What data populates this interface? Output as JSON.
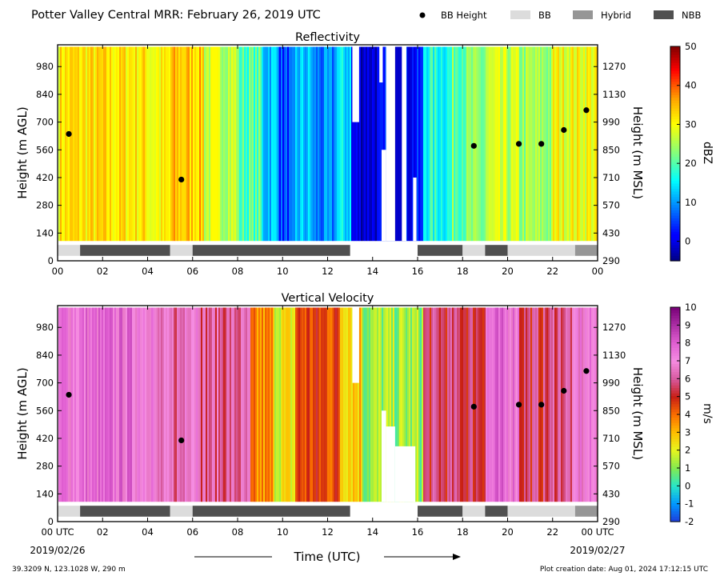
{
  "header": {
    "title": "Potter Valley Central MRR:  February 26, 2019 UTC",
    "legend": [
      {
        "label": "BB Height",
        "kind": "dot",
        "color": "#000000"
      },
      {
        "label": "BB",
        "kind": "box",
        "color": "#dcdcdc"
      },
      {
        "label": "Hybrid",
        "kind": "box",
        "color": "#969696"
      },
      {
        "label": "NBB",
        "kind": "box",
        "color": "#505050"
      }
    ]
  },
  "footer": {
    "location": "39.3209 N, 123.1028 W, 290 m",
    "created": "Plot creation date: Aug 01, 2024 17:12:15 UTC",
    "start_date": "2019/02/26",
    "end_date": "2019/02/27",
    "xlabel": "Time (UTC)"
  },
  "chart_data": [
    {
      "type": "heatmap",
      "title": "Reflectivity",
      "ylabel": "Height (m AGL)",
      "ylabel_right": "Height (m MSL)",
      "xlim": [
        0,
        24
      ],
      "ylim": [
        0,
        1090
      ],
      "yticks": [
        "0",
        "140",
        "280",
        "420",
        "560",
        "700",
        "840",
        "980"
      ],
      "yticks_right": [
        "290",
        "430",
        "570",
        "710",
        "850",
        "990",
        "1130",
        "1270"
      ],
      "xticks": [
        "00",
        "02",
        "04",
        "06",
        "08",
        "10",
        "12",
        "14",
        "16",
        "18",
        "20",
        "22",
        "00"
      ],
      "colorbar": {
        "label": "dBZ",
        "min": -5,
        "max": 50,
        "ticks": [
          "0",
          "10",
          "20",
          "30",
          "40",
          "50"
        ],
        "tick_values": [
          0,
          10,
          20,
          30,
          40,
          50
        ],
        "colormap": "jet"
      },
      "time_segments": [
        {
          "start": 0,
          "end": 4.0,
          "value": 32
        },
        {
          "start": 4.0,
          "end": 5.0,
          "value": 30
        },
        {
          "start": 5.0,
          "end": 6.5,
          "value": 34
        },
        {
          "start": 6.5,
          "end": 8.0,
          "value": 27
        },
        {
          "start": 8.0,
          "end": 9.0,
          "value": 20
        },
        {
          "start": 9.0,
          "end": 9.8,
          "value": 13
        },
        {
          "start": 9.8,
          "end": 10.5,
          "value": 5
        },
        {
          "start": 10.5,
          "end": 11.3,
          "value": 12
        },
        {
          "start": 11.3,
          "end": 12.3,
          "value": 8
        },
        {
          "start": 12.3,
          "end": 13.0,
          "value": 14
        },
        {
          "start": 13.0,
          "end": 14.5,
          "value": 0
        },
        {
          "start": 14.5,
          "end": 16.2,
          "value": 2
        },
        {
          "start": 16.2,
          "end": 17.5,
          "value": 17
        },
        {
          "start": 17.5,
          "end": 19.0,
          "value": 22
        },
        {
          "start": 19.0,
          "end": 20.5,
          "value": 26
        },
        {
          "start": 20.5,
          "end": 22.0,
          "value": 24
        },
        {
          "start": 22.0,
          "end": 24.0,
          "value": 30
        }
      ],
      "gaps": [
        {
          "start": 13.1,
          "end": 13.4,
          "ymin": 700,
          "ymax": 1090
        },
        {
          "start": 14.3,
          "end": 14.45,
          "ymin": 900,
          "ymax": 1090
        },
        {
          "start": 14.4,
          "end": 14.6,
          "ymin": 100,
          "ymax": 560
        },
        {
          "start": 14.6,
          "end": 15.0,
          "ymin": 100,
          "ymax": 1090
        },
        {
          "start": 15.3,
          "end": 15.5,
          "ymin": 100,
          "ymax": 1090
        },
        {
          "start": 15.8,
          "end": 15.95,
          "ymin": 100,
          "ymax": 420
        }
      ],
      "bb_points": [
        {
          "x": 0.5,
          "y": 640
        },
        {
          "x": 5.5,
          "y": 410
        },
        {
          "x": 18.5,
          "y": 580
        },
        {
          "x": 20.5,
          "y": 590
        },
        {
          "x": 21.5,
          "y": 590
        },
        {
          "x": 22.5,
          "y": 660
        },
        {
          "x": 23.5,
          "y": 760
        }
      ],
      "bb_type_strip": [
        {
          "start": 0,
          "end": 1.0,
          "type": "BB"
        },
        {
          "start": 1.0,
          "end": 5.0,
          "type": "NBB"
        },
        {
          "start": 5.0,
          "end": 6.0,
          "type": "BB"
        },
        {
          "start": 6.0,
          "end": 13.0,
          "type": "NBB"
        },
        {
          "start": 16.0,
          "end": 18.0,
          "type": "NBB"
        },
        {
          "start": 18.0,
          "end": 19.0,
          "type": "BB"
        },
        {
          "start": 19.0,
          "end": 20.0,
          "type": "NBB"
        },
        {
          "start": 20.0,
          "end": 23.0,
          "type": "BB"
        },
        {
          "start": 23.0,
          "end": 24.0,
          "type": "Hybrid"
        }
      ]
    },
    {
      "type": "heatmap",
      "title": "Vertical Velocity",
      "ylabel": "Height (m AGL)",
      "ylabel_right": "Height (m MSL)",
      "xlim": [
        0,
        24
      ],
      "ylim": [
        0,
        1090
      ],
      "yticks": [
        "0",
        "140",
        "280",
        "420",
        "560",
        "700",
        "840",
        "980"
      ],
      "yticks_right": [
        "290",
        "430",
        "570",
        "710",
        "850",
        "990",
        "1130",
        "1270"
      ],
      "xticks": [
        "00 UTC",
        "02",
        "04",
        "06",
        "08",
        "10",
        "12",
        "14",
        "16",
        "18",
        "20",
        "22",
        "00 UTC"
      ],
      "colorbar": {
        "label": "m/s",
        "min": -2,
        "max": 10,
        "ticks": [
          "-2",
          "-1",
          "0",
          "1",
          "2",
          "3",
          "4",
          "5",
          "6",
          "7",
          "8",
          "9",
          "10"
        ],
        "tick_values": [
          -2,
          -1,
          0,
          1,
          2,
          3,
          4,
          5,
          6,
          7,
          8,
          9,
          10
        ],
        "colormap": "velocity"
      },
      "time_segments": [
        {
          "start": 0,
          "end": 4.3,
          "value": 7.5
        },
        {
          "start": 4.3,
          "end": 5.6,
          "value": 6.2
        },
        {
          "start": 5.6,
          "end": 6.3,
          "value": 7.3
        },
        {
          "start": 6.3,
          "end": 8.5,
          "value": 6.0
        },
        {
          "start": 8.5,
          "end": 9.5,
          "value": 3.5
        },
        {
          "start": 9.5,
          "end": 10.5,
          "value": 2.2
        },
        {
          "start": 10.5,
          "end": 12.5,
          "value": 4.5
        },
        {
          "start": 12.5,
          "end": 13.5,
          "value": 3.0
        },
        {
          "start": 13.5,
          "end": 16.2,
          "value": 1.2
        },
        {
          "start": 16.2,
          "end": 19.0,
          "value": 5.5
        },
        {
          "start": 19.0,
          "end": 20.5,
          "value": 7.5
        },
        {
          "start": 20.5,
          "end": 22.0,
          "value": 5.5
        },
        {
          "start": 22.0,
          "end": 23.0,
          "value": 6.0
        },
        {
          "start": 23.0,
          "end": 24.0,
          "value": 7.0
        }
      ],
      "gaps": [
        {
          "start": 13.1,
          "end": 13.4,
          "ymin": 700,
          "ymax": 1090
        },
        {
          "start": 14.4,
          "end": 14.6,
          "ymin": 100,
          "ymax": 560
        },
        {
          "start": 14.6,
          "end": 15.0,
          "ymin": 100,
          "ymax": 480
        },
        {
          "start": 15.0,
          "end": 15.9,
          "ymin": 100,
          "ymax": 380
        }
      ],
      "bb_points": [
        {
          "x": 0.5,
          "y": 640
        },
        {
          "x": 5.5,
          "y": 410
        },
        {
          "x": 18.5,
          "y": 580
        },
        {
          "x": 20.5,
          "y": 590
        },
        {
          "x": 21.5,
          "y": 590
        },
        {
          "x": 22.5,
          "y": 660
        },
        {
          "x": 23.5,
          "y": 760
        }
      ],
      "bb_type_strip": [
        {
          "start": 0,
          "end": 1.0,
          "type": "BB"
        },
        {
          "start": 1.0,
          "end": 5.0,
          "type": "NBB"
        },
        {
          "start": 5.0,
          "end": 6.0,
          "type": "BB"
        },
        {
          "start": 6.0,
          "end": 13.0,
          "type": "NBB"
        },
        {
          "start": 16.0,
          "end": 18.0,
          "type": "NBB"
        },
        {
          "start": 18.0,
          "end": 19.0,
          "type": "BB"
        },
        {
          "start": 19.0,
          "end": 20.0,
          "type": "NBB"
        },
        {
          "start": 20.0,
          "end": 23.0,
          "type": "BB"
        },
        {
          "start": 23.0,
          "end": 24.0,
          "type": "Hybrid"
        }
      ]
    }
  ]
}
